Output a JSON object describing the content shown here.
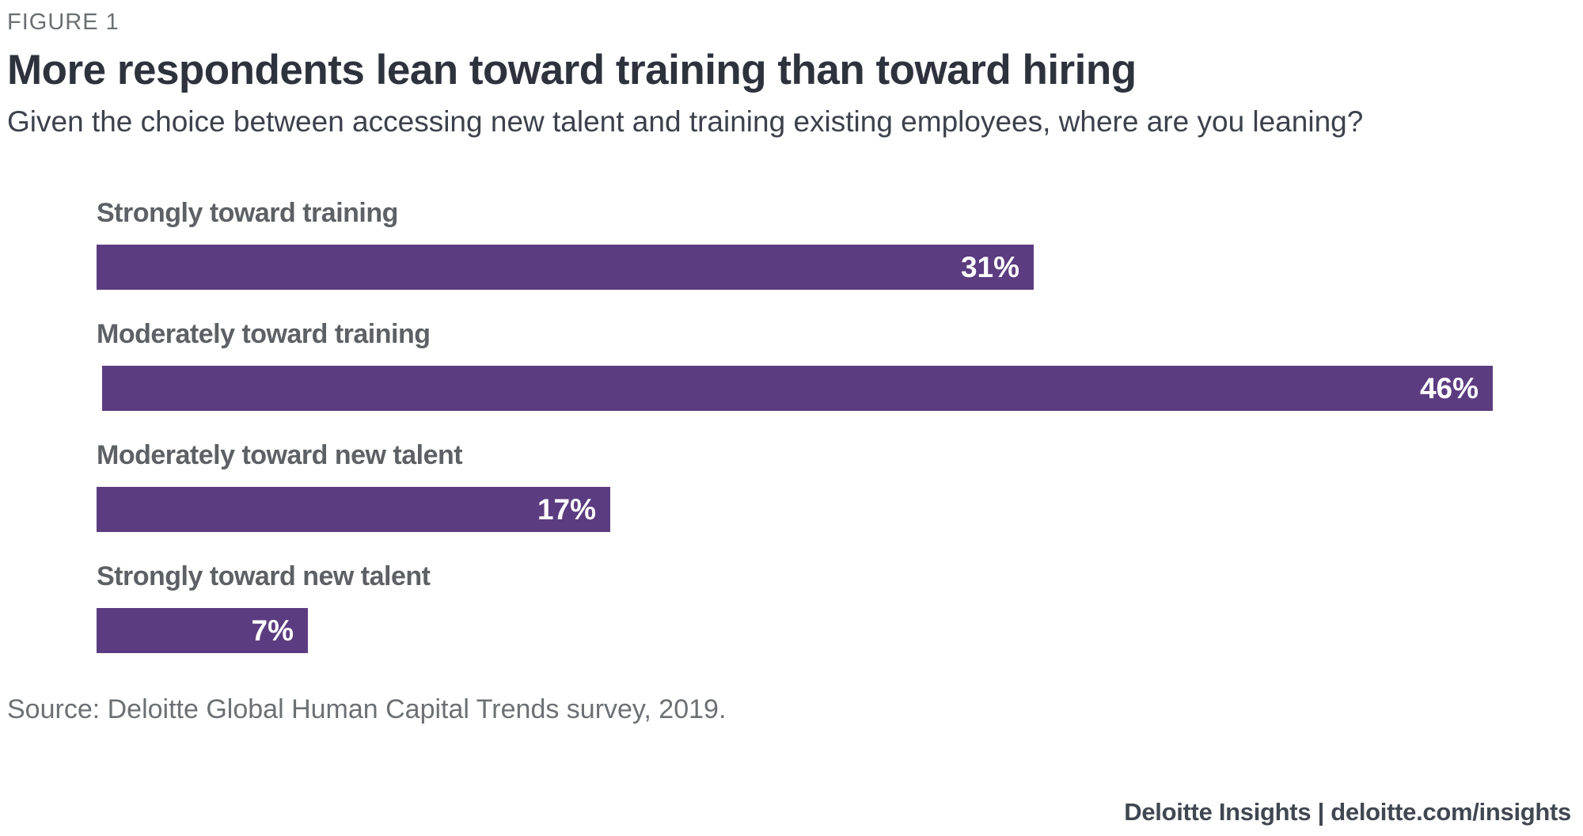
{
  "figure_label": "FIGURE 1",
  "title": "More respondents lean toward training than toward hiring",
  "subtitle": "Given the choice between accessing new talent and training existing employees, where are you leaning?",
  "source": "Source: Deloitte Global Human Capital Trends survey, 2019.",
  "footer": "Deloitte Insights | deloitte.com/insights",
  "colors": {
    "bar": "#5c3c80",
    "bar_value_text": "#ffffff",
    "title_text": "#2e323d",
    "label_text": "#5d6165",
    "muted_text": "#6c7074",
    "footer_text": "#414751"
  },
  "chart_data": {
    "type": "bar",
    "orientation": "horizontal",
    "title": "More respondents lean toward training than toward hiring",
    "subtitle": "Given the choice between accessing new talent and training existing employees, where are you leaning?",
    "categories": [
      "Strongly toward training",
      "Moderately toward training",
      "Moderately toward new talent",
      "Strongly toward new talent"
    ],
    "values": [
      31,
      46,
      17,
      7
    ],
    "value_labels": [
      "31%",
      "46%",
      "17%",
      "7%"
    ],
    "unit": "%",
    "value_label_position": "inside-end",
    "axis_visible": false,
    "grid": false,
    "legend": "none",
    "xlim": [
      0,
      46
    ],
    "source": "Source: Deloitte Global Human Capital Trends survey, 2019."
  }
}
